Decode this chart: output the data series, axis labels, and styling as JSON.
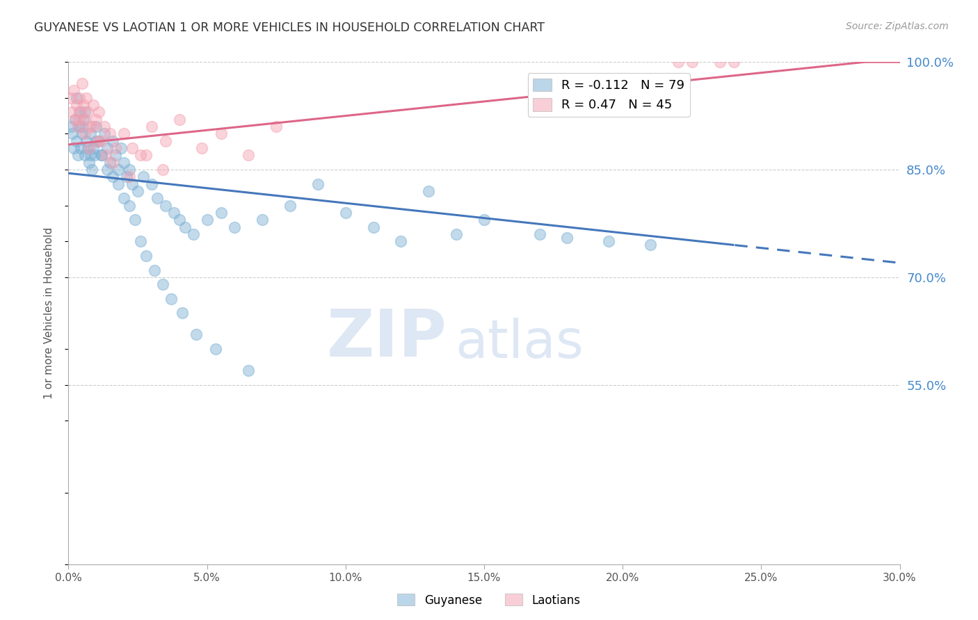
{
  "title": "GUYANESE VS LAOTIAN 1 OR MORE VEHICLES IN HOUSEHOLD CORRELATION CHART",
  "source": "Source: ZipAtlas.com",
  "xlabel": "",
  "ylabel": "1 or more Vehicles in Household",
  "xlim": [
    0.0,
    30.0
  ],
  "ylim": [
    30.0,
    100.0
  ],
  "xticks": [
    0.0,
    5.0,
    10.0,
    15.0,
    20.0,
    25.0,
    30.0
  ],
  "yticks_right": [
    55.0,
    70.0,
    85.0,
    100.0
  ],
  "grid_color": "#cccccc",
  "background_color": "#ffffff",
  "blue_color": "#7aafd4",
  "pink_color": "#f4a0b0",
  "blue_line_color": "#4477bb",
  "pink_line_color": "#dd6688",
  "blue_R": -0.112,
  "blue_N": 79,
  "pink_R": 0.47,
  "pink_N": 45,
  "watermark_zip": "ZIP",
  "watermark_atlas": "atlas",
  "watermark_color": "#c8d8ee",
  "legend_blue_label": "Guyanese",
  "legend_pink_label": "Laotians",
  "blue_trend_x0": 0.0,
  "blue_trend_y0": 84.5,
  "blue_trend_x1": 30.0,
  "blue_trend_y1": 72.0,
  "blue_solid_cutoff": 24.0,
  "pink_trend_x0": 0.0,
  "pink_trend_y0": 88.5,
  "pink_trend_x1": 30.0,
  "pink_trend_y1": 100.5,
  "blue_scatter_x": [
    0.1,
    0.15,
    0.2,
    0.25,
    0.3,
    0.35,
    0.4,
    0.45,
    0.5,
    0.55,
    0.6,
    0.65,
    0.7,
    0.75,
    0.8,
    0.85,
    0.9,
    0.95,
    1.0,
    1.1,
    1.2,
    1.3,
    1.4,
    1.5,
    1.6,
    1.7,
    1.8,
    1.9,
    2.0,
    2.1,
    2.2,
    2.3,
    2.5,
    2.7,
    3.0,
    3.2,
    3.5,
    3.8,
    4.0,
    4.2,
    4.5,
    5.0,
    5.5,
    6.0,
    7.0,
    8.0,
    9.0,
    10.0,
    11.0,
    12.0,
    13.0,
    14.0,
    15.0,
    17.0,
    18.0,
    19.5,
    21.0,
    0.3,
    0.4,
    0.5,
    0.6,
    0.8,
    1.0,
    1.2,
    1.4,
    1.6,
    1.8,
    2.0,
    2.2,
    2.4,
    2.6,
    2.8,
    3.1,
    3.4,
    3.7,
    4.1,
    4.6,
    5.3,
    6.5
  ],
  "blue_scatter_y": [
    91.0,
    90.0,
    88.0,
    92.0,
    89.0,
    87.0,
    91.0,
    88.0,
    90.0,
    92.0,
    87.0,
    89.0,
    88.0,
    86.0,
    90.0,
    85.0,
    88.0,
    87.0,
    91.0,
    89.0,
    87.0,
    90.0,
    88.0,
    86.0,
    89.0,
    87.0,
    85.0,
    88.0,
    86.0,
    84.0,
    85.0,
    83.0,
    82.0,
    84.0,
    83.0,
    81.0,
    80.0,
    79.0,
    78.0,
    77.0,
    76.0,
    78.0,
    79.0,
    77.0,
    78.0,
    80.0,
    83.0,
    79.0,
    77.0,
    75.0,
    82.0,
    76.0,
    78.0,
    76.0,
    75.5,
    75.0,
    74.5,
    95.0,
    93.0,
    91.0,
    93.0,
    87.0,
    89.0,
    87.0,
    85.0,
    84.0,
    83.0,
    81.0,
    80.0,
    78.0,
    75.0,
    73.0,
    71.0,
    69.0,
    67.0,
    65.0,
    62.0,
    60.0,
    57.0
  ],
  "pink_scatter_x": [
    0.1,
    0.15,
    0.2,
    0.25,
    0.3,
    0.35,
    0.4,
    0.45,
    0.5,
    0.55,
    0.6,
    0.65,
    0.7,
    0.8,
    0.9,
    1.0,
    1.1,
    1.2,
    1.3,
    1.5,
    1.7,
    2.0,
    2.3,
    2.6,
    3.0,
    3.5,
    4.0,
    5.5,
    6.5,
    7.5,
    22.0,
    23.5,
    0.4,
    0.6,
    0.75,
    0.9,
    1.05,
    1.35,
    1.6,
    2.2,
    2.8,
    3.4,
    4.8,
    22.5,
    24.0
  ],
  "pink_scatter_y": [
    95.0,
    93.0,
    96.0,
    92.0,
    94.0,
    91.0,
    95.0,
    93.0,
    97.0,
    94.0,
    92.0,
    95.0,
    93.0,
    91.0,
    94.0,
    92.0,
    93.0,
    89.0,
    91.0,
    90.0,
    88.0,
    90.0,
    88.0,
    87.0,
    91.0,
    89.0,
    92.0,
    90.0,
    87.0,
    91.0,
    100.0,
    100.0,
    92.0,
    90.0,
    88.0,
    91.0,
    89.0,
    87.0,
    86.0,
    84.0,
    87.0,
    85.0,
    88.0,
    100.0,
    100.0
  ]
}
